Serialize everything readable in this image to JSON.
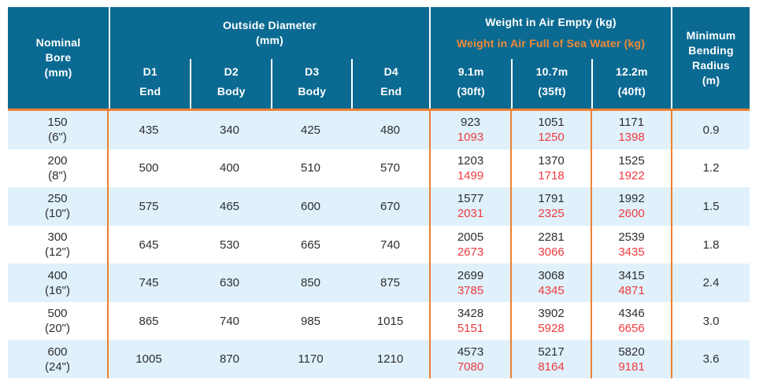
{
  "table": {
    "header": {
      "nominal_bore": "Nominal\nBore\n(mm)",
      "outside_diameter": {
        "title": "Outside Diameter\n(mm)",
        "columns": [
          {
            "id": "D1",
            "position": "End"
          },
          {
            "id": "D2",
            "position": "Body"
          },
          {
            "id": "D3",
            "position": "Body"
          },
          {
            "id": "D4",
            "position": "End"
          }
        ]
      },
      "weight": {
        "title_empty": "Weight in Air Empty (kg)",
        "title_full": "Weight in Air Full of Sea Water (kg)",
        "columns": [
          {
            "length": "9.1m",
            "feet": "(30ft)"
          },
          {
            "length": "10.7m",
            "feet": "(35ft)"
          },
          {
            "length": "12.2m",
            "feet": "(40ft)"
          }
        ]
      },
      "min_bending_radius": "Minimum\nBending\nRadius\n(m)"
    },
    "rows": [
      {
        "bore": "150\n(6\")",
        "d1": "435",
        "d2": "340",
        "d3": "425",
        "d4": "480",
        "w_91": {
          "empty": "923",
          "full": "1093"
        },
        "w_107": {
          "empty": "1051",
          "full": "1250"
        },
        "w_122": {
          "empty": "1171",
          "full": "1398"
        },
        "radius": "0.9"
      },
      {
        "bore": "200\n(8\")",
        "d1": "500",
        "d2": "400",
        "d3": "510",
        "d4": "570",
        "w_91": {
          "empty": "1203",
          "full": "1499"
        },
        "w_107": {
          "empty": "1370",
          "full": "1718"
        },
        "w_122": {
          "empty": "1525",
          "full": "1922"
        },
        "radius": "1.2"
      },
      {
        "bore": "250\n(10\")",
        "d1": "575",
        "d2": "465",
        "d3": "600",
        "d4": "670",
        "w_91": {
          "empty": "1577",
          "full": "2031"
        },
        "w_107": {
          "empty": "1791",
          "full": "2325"
        },
        "w_122": {
          "empty": "1992",
          "full": "2600"
        },
        "radius": "1.5"
      },
      {
        "bore": "300\n(12\")",
        "d1": "645",
        "d2": "530",
        "d3": "665",
        "d4": "740",
        "w_91": {
          "empty": "2005",
          "full": "2673"
        },
        "w_107": {
          "empty": "2281",
          "full": "3066"
        },
        "w_122": {
          "empty": "2539",
          "full": "3435"
        },
        "radius": "1.8"
      },
      {
        "bore": "400\n(16\")",
        "d1": "745",
        "d2": "630",
        "d3": "850",
        "d4": "875",
        "w_91": {
          "empty": "2699",
          "full": "3785"
        },
        "w_107": {
          "empty": "3068",
          "full": "4345"
        },
        "w_122": {
          "empty": "3415",
          "full": "4871"
        },
        "radius": "2.4"
      },
      {
        "bore": "500\n(20\")",
        "d1": "865",
        "d2": "740",
        "d3": "985",
        "d4": "1015",
        "w_91": {
          "empty": "3428",
          "full": "5151"
        },
        "w_107": {
          "empty": "3902",
          "full": "5928"
        },
        "w_122": {
          "empty": "4346",
          "full": "6656"
        },
        "radius": "3.0"
      },
      {
        "bore": "600\n(24\")",
        "d1": "1005",
        "d2": "870",
        "d3": "1170",
        "d4": "1210",
        "w_91": {
          "empty": "4573",
          "full": "7080"
        },
        "w_107": {
          "empty": "5217",
          "full": "8164"
        },
        "w_122": {
          "empty": "5820",
          "full": "9181"
        },
        "radius": "3.6"
      }
    ],
    "colors": {
      "header_bg": "#0A6A92",
      "accent_orange": "#EE8032",
      "accent_text": "#F08A35",
      "full_weight_red": "#EE3B3E",
      "row_alt_bg": "#E0F1FB",
      "body_text": "#2E2E30"
    }
  }
}
